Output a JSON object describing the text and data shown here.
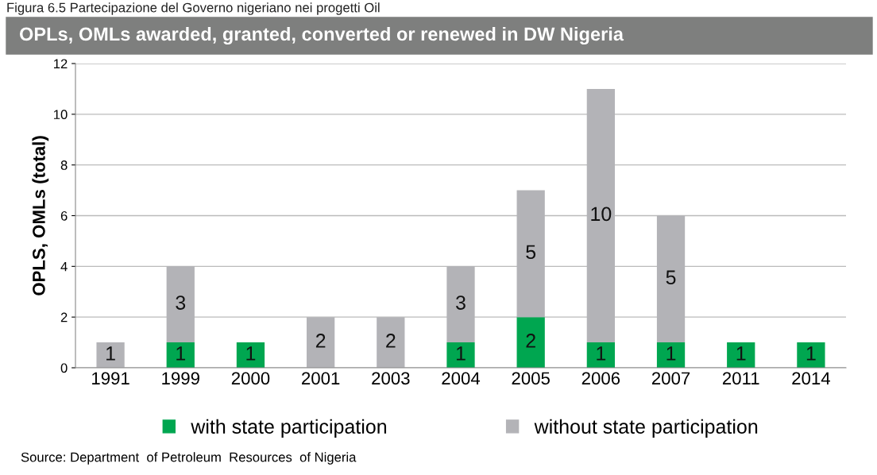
{
  "chart_data": {
    "type": "bar",
    "subtitle": "Figura 6.5 Partecipazione del Governo nigeriano nei progetti Oil",
    "title": "OPLs, OMLs awarded, granted, converted or renewed in DW Nigeria",
    "ylabel": "OPLS, OMLs (total)",
    "categories": [
      "1991",
      "1999",
      "2000",
      "2001",
      "2003",
      "2004",
      "2005",
      "2006",
      "2007",
      "2011",
      "2014"
    ],
    "stacked": true,
    "series": [
      {
        "name": "with state participation",
        "color": "#00a650",
        "values": [
          0,
          1,
          1,
          0,
          0,
          1,
          2,
          1,
          1,
          1,
          1
        ],
        "value_labels": [
          null,
          "1",
          "1",
          null,
          null,
          "1",
          "2",
          "1",
          "1",
          "1",
          "1"
        ]
      },
      {
        "name": "without state participation",
        "color": "#b3b3b7",
        "values": [
          1,
          3,
          0,
          2,
          2,
          3,
          5,
          10,
          5,
          0,
          0
        ],
        "value_labels": [
          "1",
          "3",
          null,
          "2",
          "2",
          "3",
          "5",
          "10",
          "5",
          null,
          null
        ]
      }
    ],
    "ylim": [
      0,
      12
    ],
    "yticks": [
      0,
      2,
      4,
      6,
      8,
      10,
      12
    ],
    "grid": "y",
    "legend": "bottom",
    "annotations": [
      "Source: Department  of Petroleum  Resources  of Nigeria"
    ]
  }
}
